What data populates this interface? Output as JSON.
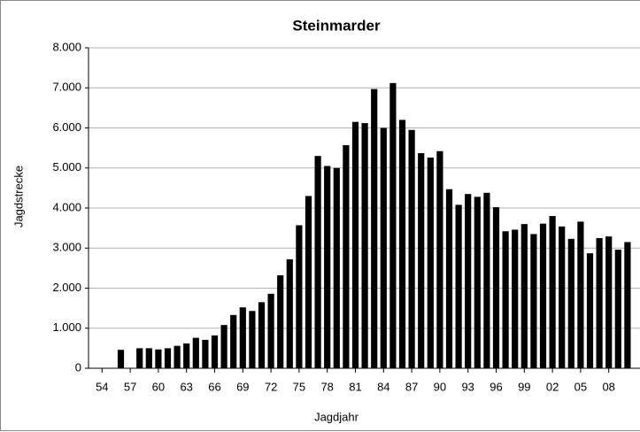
{
  "chart_data": {
    "type": "bar",
    "title": "Steinmarder",
    "x_label": "Jagdjahr",
    "y_label": "Jagdstrecke",
    "categories": [
      "54",
      null,
      null,
      "57",
      null,
      null,
      "60",
      null,
      null,
      "63",
      null,
      null,
      "66",
      null,
      null,
      "69",
      null,
      null,
      "72",
      null,
      null,
      "75",
      null,
      null,
      "78",
      null,
      null,
      "81",
      null,
      null,
      "84",
      null,
      null,
      "87",
      null,
      null,
      "90",
      null,
      null,
      "93",
      null,
      null,
      "96",
      null,
      null,
      "99",
      null,
      null,
      "02",
      null,
      null,
      "05",
      null,
      null,
      "08",
      null,
      null
    ],
    "values": [
      null,
      null,
      460,
      null,
      500,
      500,
      470,
      500,
      560,
      620,
      760,
      710,
      820,
      1080,
      1330,
      1520,
      1430,
      1650,
      1860,
      2320,
      2720,
      3570,
      4300,
      5300,
      5050,
      5000,
      5570,
      6150,
      6120,
      6970,
      6000,
      7120,
      6200,
      5950,
      5370,
      5260,
      5420,
      4470,
      4080,
      4350,
      4280,
      4380,
      4020,
      3420,
      3460,
      3600,
      3350,
      3610,
      3800,
      3540,
      3230,
      3660,
      2870,
      3250,
      3290,
      2960,
      3150
    ],
    "color": "#000000",
    "ylim": [
      0,
      8000
    ],
    "yticks": [
      0,
      {
        "value": 1000,
        "label": "1.000"
      },
      {
        "value": 2000,
        "label": "2.000"
      },
      {
        "value": 3000,
        "label": "3.000"
      },
      {
        "value": 4000,
        "label": "4.000"
      },
      {
        "value": 5000,
        "label": "5.000"
      },
      {
        "value": 6000,
        "label": "6.000"
      },
      {
        "value": 7000,
        "label": "7.000"
      },
      {
        "value": 8000,
        "label": "8.000"
      }
    ],
    "grid": true
  }
}
